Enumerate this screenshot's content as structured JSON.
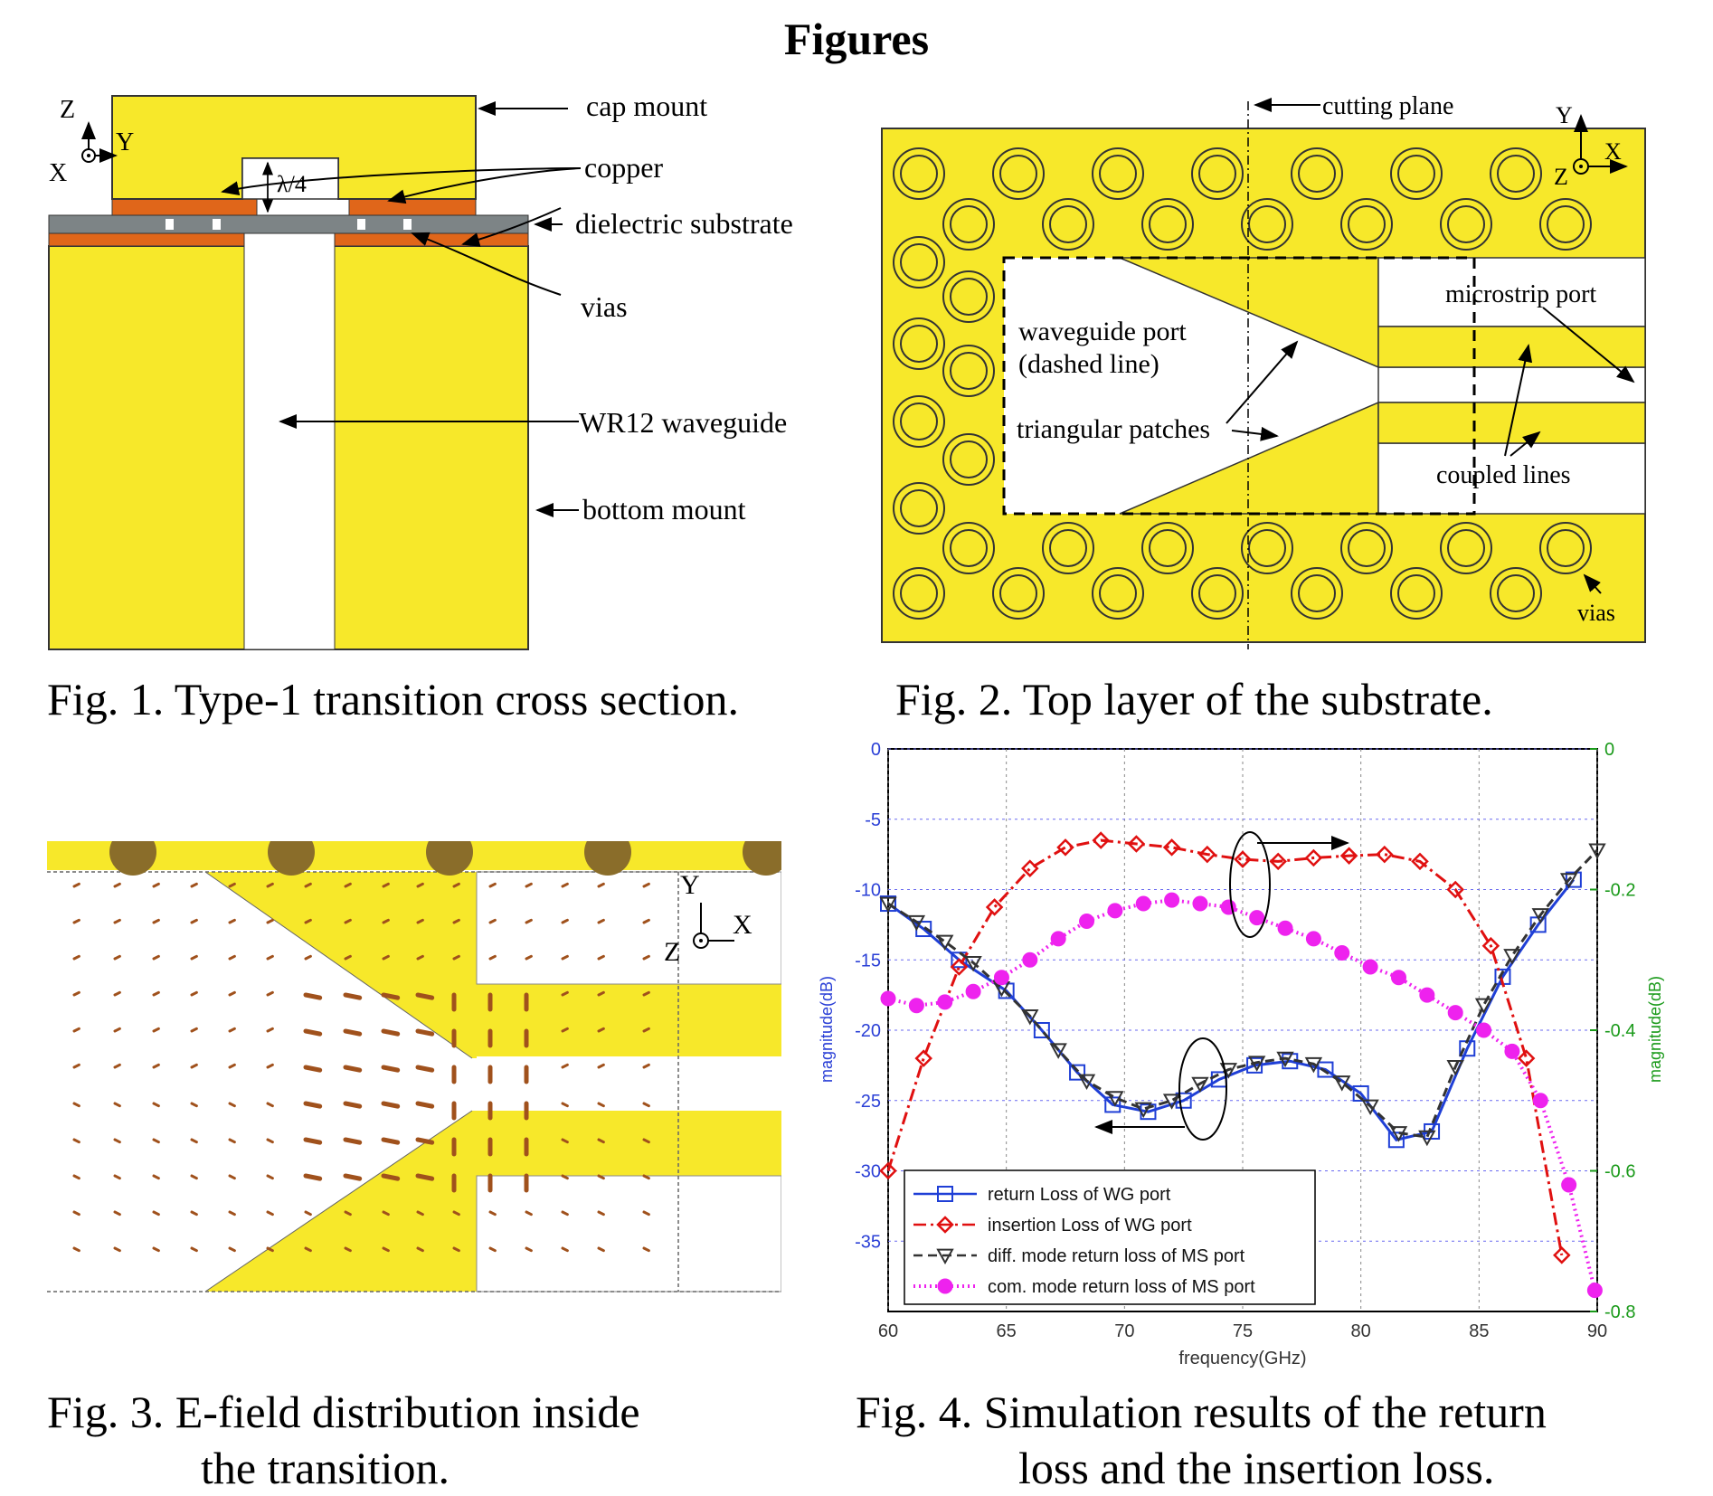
{
  "page": {
    "heading": "Figures"
  },
  "fig1": {
    "caption": "Fig. 1.  Type-1 transition cross section.",
    "labels": {
      "cap_mount": "cap mount",
      "copper": "copper",
      "dielectric_substrate": "dielectric substrate",
      "vias": "vias",
      "wr12_waveguide": "WR12 waveguide",
      "bottom_mount": "bottom mount",
      "lambda": "λ/4"
    },
    "axes": {
      "z": "Z",
      "y": "Y",
      "x": "X"
    }
  },
  "fig2": {
    "caption": "Fig. 2.  Top layer of the substrate.",
    "labels": {
      "cutting_plane": "cutting plane",
      "microstrip_port": "microstrip port",
      "waveguide_port_1": "waveguide port",
      "waveguide_port_2": "(dashed line)",
      "triangular_patches": "triangular patches",
      "coupled_lines": "coupled lines",
      "vias": "vias"
    },
    "axes": {
      "y": "Y",
      "x": "X",
      "z": "Z"
    }
  },
  "fig3": {
    "caption_line1": "Fig. 3.  E-field distribution inside",
    "caption_line2": "the transition.",
    "axes": {
      "y": "Y",
      "x": "X",
      "z": "Z"
    }
  },
  "fig4": {
    "caption_line1": "Fig. 4.  Simulation results of the return",
    "caption_line2": "loss and the insertion loss.",
    "chart_data": {
      "type": "line",
      "xlabel": "frequency(GHz)",
      "ylabel_left": "magnitude(dB)",
      "ylabel_right": "magnitude(dB)",
      "xlim": [
        60,
        90
      ],
      "ylim_left": [
        -40,
        0
      ],
      "ylim_right": [
        -0.8,
        0
      ],
      "x_ticks": [
        "60",
        "65",
        "70",
        "75",
        "80",
        "85",
        "90"
      ],
      "y_left_ticks": [
        "0",
        "-5",
        "-10",
        "-15",
        "-20",
        "-25",
        "-30",
        "-35"
      ],
      "y_right_ticks": [
        "0",
        "-0.2",
        "-0.4",
        "-0.6",
        "-0.8"
      ],
      "grid": true,
      "legend_position": "bottom-center",
      "series": [
        {
          "name": "return Loss of WG port",
          "axis": "left",
          "color": "#1f3fd6",
          "dash": "solid",
          "marker": "square",
          "x": [
            60,
            61.5,
            63,
            65,
            66.5,
            68,
            69.5,
            71,
            72.5,
            74,
            75.5,
            77,
            78.5,
            80,
            81.5,
            83,
            84.5,
            86,
            87.5,
            89
          ],
          "y": [
            -11,
            -12.8,
            -15,
            -17.2,
            -20,
            -23,
            -25.3,
            -25.8,
            -25,
            -23.5,
            -22.5,
            -22.2,
            -22.8,
            -24.5,
            -27.8,
            -27.2,
            -21.3,
            -16.2,
            -12.5,
            -9.3
          ]
        },
        {
          "name": "insertion Loss of WG port",
          "axis": "right",
          "color": "#e01010",
          "dash": "dashdot",
          "marker": "diamond",
          "x": [
            60,
            61.5,
            63,
            64.5,
            66,
            67.5,
            69,
            70.5,
            72,
            73.5,
            75,
            76.5,
            78,
            79.5,
            81,
            82.5,
            84,
            85.5,
            87,
            88.5
          ],
          "y": [
            -0.6,
            -0.44,
            -0.31,
            -0.225,
            -0.17,
            -0.14,
            -0.13,
            -0.135,
            -0.14,
            -0.15,
            -0.157,
            -0.16,
            -0.155,
            -0.152,
            -0.15,
            -0.16,
            -0.2,
            -0.28,
            -0.44,
            -0.72
          ]
        },
        {
          "name": "diff. mode return loss of MS port",
          "axis": "left",
          "color": "#333333",
          "dash": "dashed",
          "marker": "triangle-down",
          "x": [
            60,
            61.2,
            62.4,
            63.6,
            64.8,
            66,
            67.2,
            68.4,
            69.6,
            70.8,
            72,
            73.2,
            74.4,
            75.6,
            76.8,
            78,
            79.2,
            80.4,
            81.6,
            82.8,
            84,
            85.2,
            86.4,
            87.6,
            88.8,
            90
          ],
          "y": [
            -11,
            -12.3,
            -13.7,
            -15.2,
            -17,
            -19,
            -21.4,
            -23.6,
            -24.8,
            -25.6,
            -25,
            -23.8,
            -22.8,
            -22.3,
            -22,
            -22.4,
            -23.7,
            -25.4,
            -27.3,
            -27.6,
            -22.6,
            -18.2,
            -14.7,
            -11.8,
            -9.3,
            -7.2
          ]
        },
        {
          "name": "com. mode return loss of MS port",
          "axis": "right",
          "color": "#ee22ee",
          "dash": "dotted",
          "marker": "circle",
          "x": [
            60,
            61.2,
            62.4,
            63.6,
            64.8,
            66,
            67.2,
            68.4,
            69.6,
            70.8,
            72,
            73.2,
            74.4,
            75.6,
            76.8,
            78,
            79.2,
            80.4,
            81.6,
            82.8,
            84,
            85.2,
            86.4,
            87.6,
            88.8,
            89.9
          ],
          "y": [
            -0.355,
            -0.365,
            -0.36,
            -0.345,
            -0.325,
            -0.3,
            -0.27,
            -0.245,
            -0.23,
            -0.22,
            -0.215,
            -0.22,
            -0.225,
            -0.24,
            -0.255,
            -0.27,
            -0.29,
            -0.31,
            -0.325,
            -0.35,
            -0.375,
            -0.4,
            -0.43,
            -0.5,
            -0.62,
            -0.77
          ]
        }
      ]
    }
  }
}
